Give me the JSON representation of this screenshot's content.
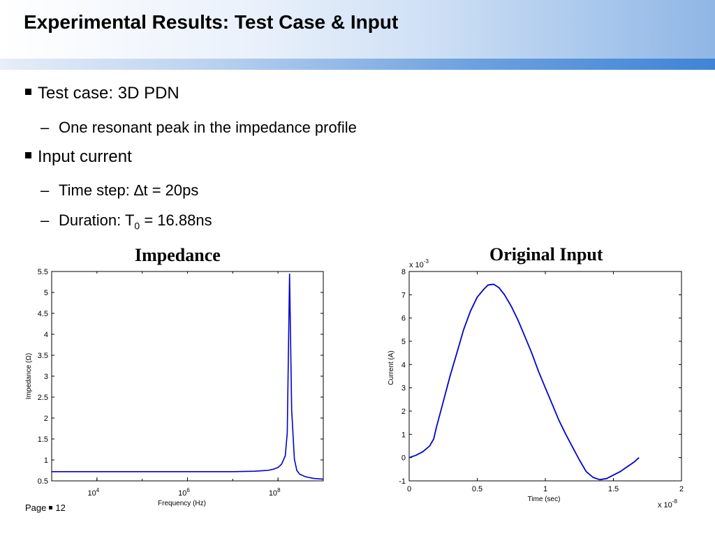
{
  "slide": {
    "title": "Experimental Results: Test Case & Input",
    "bullets": [
      {
        "text": "Test case: 3D PDN"
      },
      {
        "text": "One resonant peak in the impedance profile"
      },
      {
        "text": "Input current"
      },
      {
        "text_pre": "Time step: ",
        "symbol": "∆",
        "text_post": "t = 20ps"
      },
      {
        "text_pre": "Duration: T",
        "subscript": "0",
        "text_post": " = 16.88ns"
      }
    ],
    "footer": {
      "page_label": "Page",
      "page_number": "12"
    }
  },
  "chart_data": [
    {
      "type": "line",
      "title": "Impedance",
      "xlabel": "Frequency (Hz)",
      "ylabel": "Impedance (Ω)",
      "xscale": "log",
      "xlim": [
        1000,
        1000000000
      ],
      "ylim": [
        0.5,
        5.5
      ],
      "xticks": [
        {
          "base": "10",
          "exp": "4",
          "value": 10000
        },
        {
          "base": "10",
          "exp": "6",
          "value": 1000000
        },
        {
          "base": "10",
          "exp": "8",
          "value": 100000000
        }
      ],
      "yticks": [
        "0.5",
        "1",
        "1.5",
        "2",
        "2.5",
        "3",
        "3.5",
        "4",
        "4.5",
        "5",
        "5.5"
      ],
      "color": "#0000cc",
      "series": [
        {
          "x": [
            1000,
            10000,
            100000,
            1000000,
            10000000,
            30000000,
            60000000,
            80000000,
            100000000,
            120000000,
            145000000,
            160000000,
            180000000,
            200000000,
            230000000,
            260000000,
            300000000,
            400000000,
            600000000,
            1000000000
          ],
          "y": [
            0.72,
            0.72,
            0.72,
            0.72,
            0.72,
            0.73,
            0.75,
            0.78,
            0.82,
            0.9,
            1.1,
            1.65,
            5.45,
            2.2,
            1.02,
            0.75,
            0.66,
            0.6,
            0.56,
            0.54
          ]
        }
      ]
    },
    {
      "type": "line",
      "title": "Original Input",
      "xlabel": "Time (sec)",
      "ylabel": "Current (A)",
      "xlim": [
        0,
        2
      ],
      "ylim": [
        -1,
        8
      ],
      "xticks": [
        "0",
        "0.5",
        "1",
        "1.5",
        "2"
      ],
      "yticks": [
        "-1",
        "0",
        "1",
        "2",
        "3",
        "4",
        "5",
        "6",
        "7",
        "8"
      ],
      "x_multiplier": {
        "prefix": "x 10",
        "exp": "-8"
      },
      "y_multiplier": {
        "prefix": "x 10",
        "exp": "-3"
      },
      "color": "#0000cc",
      "series": [
        {
          "x": [
            0,
            0.05,
            0.1,
            0.15,
            0.18,
            0.2,
            0.25,
            0.3,
            0.35,
            0.4,
            0.45,
            0.5,
            0.55,
            0.58,
            0.62,
            0.66,
            0.7,
            0.75,
            0.8,
            0.85,
            0.9,
            0.95,
            1.0,
            1.05,
            1.1,
            1.15,
            1.2,
            1.25,
            1.3,
            1.35,
            1.4,
            1.45,
            1.5,
            1.55,
            1.6,
            1.65,
            1.688
          ],
          "y": [
            0.0,
            0.1,
            0.25,
            0.5,
            0.8,
            1.3,
            2.4,
            3.5,
            4.5,
            5.5,
            6.3,
            6.9,
            7.25,
            7.42,
            7.45,
            7.3,
            7.0,
            6.5,
            5.9,
            5.2,
            4.5,
            3.7,
            3.0,
            2.3,
            1.6,
            1.0,
            0.45,
            -0.1,
            -0.6,
            -0.85,
            -0.95,
            -0.9,
            -0.75,
            -0.6,
            -0.4,
            -0.2,
            0.0
          ]
        }
      ]
    }
  ]
}
